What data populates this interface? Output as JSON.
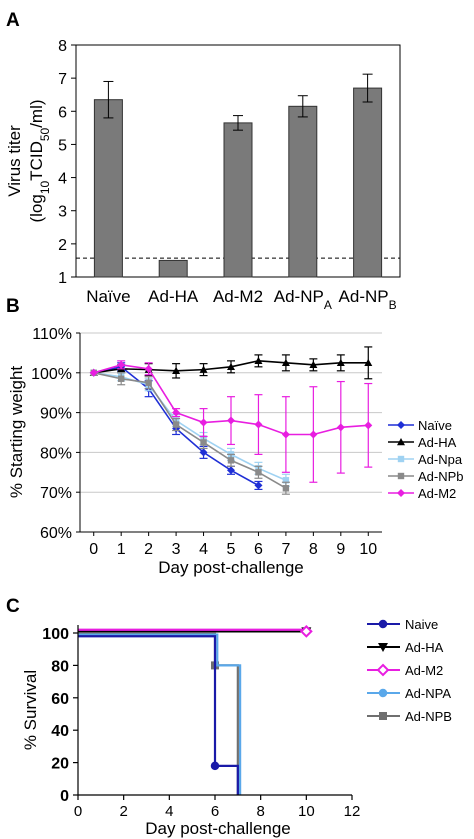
{
  "chart_data": [
    {
      "panel": "A",
      "type": "bar",
      "ylabel_line1": "Virus titer",
      "ylabel_line2": "(log10TCID50/ml)",
      "ylim": [
        1,
        8
      ],
      "yticks": [
        1,
        2,
        3,
        4,
        5,
        6,
        7,
        8
      ],
      "categories": [
        {
          "main": "Naïve",
          "sub": ""
        },
        {
          "main": "Ad-HA",
          "sub": ""
        },
        {
          "main": "Ad-M2",
          "sub": ""
        },
        {
          "main": "Ad-NP",
          "sub": "A"
        },
        {
          "main": "Ad-NP",
          "sub": "B"
        }
      ],
      "values": [
        6.35,
        1.5,
        5.65,
        6.15,
        6.7
      ],
      "errors": [
        0.55,
        0,
        0.22,
        0.32,
        0.42
      ],
      "detection_limit": 1.57,
      "bar_color": "#7a7a7a"
    },
    {
      "panel": "B",
      "type": "line",
      "xlabel": "Day post-challenge",
      "ylabel": "% Starting weight",
      "ylim": [
        60,
        110
      ],
      "yticks": [
        "60%",
        "70%",
        "80%",
        "90%",
        "100%",
        "110%"
      ],
      "xlim": [
        -0.5,
        10.5
      ],
      "xticks": [
        0,
        1,
        2,
        3,
        4,
        5,
        6,
        7,
        8,
        9,
        10
      ],
      "legend_position": "right",
      "series": [
        {
          "name": "Naïve",
          "color": "#1f2fd6",
          "marker": "diamond",
          "x": [
            0,
            1,
            2,
            3,
            4,
            5,
            6
          ],
          "y": [
            100,
            101.5,
            96,
            86,
            80,
            75.5,
            71.7
          ],
          "err": [
            0,
            1.0,
            2.0,
            1.5,
            1.5,
            1.0,
            1.0
          ]
        },
        {
          "name": "Ad-HA",
          "color": "#000000",
          "marker": "triangle",
          "x": [
            0,
            1,
            2,
            3,
            4,
            5,
            6,
            7,
            8,
            9,
            10
          ],
          "y": [
            100,
            101,
            100.8,
            100.5,
            100.8,
            101.5,
            103,
            102.5,
            102,
            102.5,
            102.5
          ],
          "err": [
            0,
            1.0,
            1.5,
            1.8,
            1.5,
            1.5,
            1.5,
            2.0,
            1.5,
            2.0,
            4.0
          ]
        },
        {
          "name": "Ad-Npa",
          "color": "#9fd2f2",
          "marker": "square",
          "x": [
            0,
            1,
            2,
            3,
            4,
            5,
            6,
            7
          ],
          "y": [
            100,
            99,
            97,
            88,
            83.5,
            79.5,
            76,
            73
          ],
          "err": [
            0,
            1.0,
            1.5,
            1.5,
            1.5,
            1.5,
            1.5,
            1.5
          ]
        },
        {
          "name": "Ad-NPb",
          "color": "#8a8a8a",
          "marker": "square",
          "x": [
            0,
            1,
            2,
            3,
            4,
            5,
            6,
            7
          ],
          "y": [
            100,
            98.5,
            97.5,
            87,
            82.5,
            78,
            75,
            71
          ],
          "err": [
            0,
            1.5,
            1.5,
            1.5,
            1.5,
            1.5,
            1.5,
            1.5
          ]
        },
        {
          "name": "Ad-M2",
          "color": "#e81ee0",
          "marker": "diamond",
          "x": [
            0,
            1,
            2,
            3,
            4,
            5,
            6,
            7,
            8,
            9,
            10
          ],
          "y": [
            100,
            102,
            101,
            90,
            87.5,
            88,
            87,
            84.5,
            84.5,
            86.3,
            86.8
          ],
          "err": [
            0,
            1.0,
            1.5,
            1.0,
            3.5,
            6.0,
            7.5,
            9.5,
            12.0,
            11.5,
            10.5
          ]
        }
      ]
    },
    {
      "panel": "C",
      "type": "line",
      "xlabel": "Day post-challenge",
      "ylabel": "% Survival",
      "ylim": [
        0,
        100
      ],
      "yticks": [
        0,
        20,
        40,
        60,
        80,
        100
      ],
      "xlim": [
        0,
        12
      ],
      "xticks": [
        0,
        2,
        4,
        6,
        8,
        10,
        12
      ],
      "legend_position": "right",
      "series": [
        {
          "name": "Naive",
          "color": "#1a1aa8",
          "marker": "circle",
          "steps": [
            [
              0,
              98
            ],
            [
              6,
              98
            ],
            [
              6,
              18
            ],
            [
              7,
              18
            ],
            [
              7,
              0
            ]
          ],
          "points": [
            [
              6,
              18
            ]
          ]
        },
        {
          "name": "Ad-HA",
          "color": "#000000",
          "marker": "triangle-down",
          "steps": [
            [
              0,
              101
            ],
            [
              10,
              101
            ]
          ],
          "points": [
            [
              10,
              101
            ]
          ]
        },
        {
          "name": "Ad-M2",
          "color": "#e81ee0",
          "marker": "diamond-open",
          "steps": [
            [
              0,
              102
            ],
            [
              10,
              102
            ]
          ],
          "points": [
            [
              10,
              101
            ]
          ]
        },
        {
          "name": "Ad-NPA",
          "color": "#5aa8ea",
          "marker": "circle",
          "steps": [
            [
              0,
              99
            ],
            [
              6.1,
              99
            ],
            [
              6.1,
              80
            ],
            [
              7.1,
              80
            ],
            [
              7.1,
              0
            ]
          ],
          "points": []
        },
        {
          "name": "Ad-NPB",
          "color": "#6f6f6f",
          "marker": "square",
          "steps": [
            [
              0,
              99.5
            ],
            [
              6,
              99.5
            ],
            [
              6,
              80
            ],
            [
              7,
              80
            ],
            [
              7,
              0
            ]
          ],
          "points": [
            [
              6,
              80
            ]
          ]
        }
      ]
    }
  ]
}
